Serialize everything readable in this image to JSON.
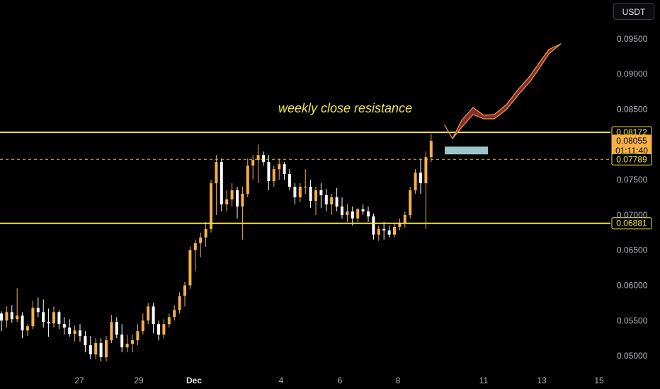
{
  "toolbar": {
    "currency": "USDT"
  },
  "chart_data": {
    "type": "candlestick",
    "ylim": [
      0.0488,
      0.097
    ],
    "yticks": [
      "0.09500",
      "0.09000",
      "0.08500",
      "0.07500",
      "0.07000",
      "0.06500",
      "0.06000",
      "0.05500",
      "0.05000"
    ],
    "xticks": [
      "27",
      "29",
      "Dec",
      "4",
      "6",
      "8",
      "11",
      "13",
      "15"
    ],
    "colors": {
      "up": "#f5b048",
      "down": "#ffffff",
      "level": "#f0e44a",
      "zone": "#9cc5cc",
      "projection": "#8b2a2a",
      "projection_edge": "#e8a24a",
      "dashed": "#e0c23a"
    },
    "levels": [
      {
        "price": 0.08172,
        "label": "0.08172",
        "annotation": "weekly close resistance"
      },
      {
        "price": 0.06881,
        "label": "0.06881"
      }
    ],
    "current_price": {
      "price": 0.08055,
      "label": "0.08055",
      "countdown": "01:11:40"
    },
    "dashed_level": {
      "price": 0.07789,
      "label": "0.07789"
    },
    "candles": [
      [
        0.056,
        0.0563,
        0.0535,
        0.055
      ],
      [
        0.055,
        0.057,
        0.054,
        0.0562
      ],
      [
        0.0562,
        0.0572,
        0.0547,
        0.0552
      ],
      [
        0.0552,
        0.0596,
        0.0548,
        0.0557
      ],
      [
        0.0557,
        0.0562,
        0.0525,
        0.0536
      ],
      [
        0.0536,
        0.0545,
        0.0528,
        0.0542
      ],
      [
        0.0542,
        0.0578,
        0.0538,
        0.0568
      ],
      [
        0.0568,
        0.0583,
        0.0555,
        0.0562
      ],
      [
        0.0562,
        0.058,
        0.054,
        0.0548
      ],
      [
        0.0548,
        0.0567,
        0.0527,
        0.0546
      ],
      [
        0.0546,
        0.057,
        0.054,
        0.0562
      ],
      [
        0.0562,
        0.0565,
        0.0538,
        0.0545
      ],
      [
        0.0545,
        0.0555,
        0.053,
        0.054
      ],
      [
        0.054,
        0.0552,
        0.0527,
        0.0531
      ],
      [
        0.0531,
        0.0543,
        0.052,
        0.0536
      ],
      [
        0.0536,
        0.0545,
        0.052,
        0.0528
      ],
      [
        0.0528,
        0.0535,
        0.0505,
        0.0515
      ],
      [
        0.0515,
        0.0528,
        0.0495,
        0.0502
      ],
      [
        0.0502,
        0.0525,
        0.0495,
        0.0518
      ],
      [
        0.0518,
        0.0525,
        0.0492,
        0.0498
      ],
      [
        0.0498,
        0.0528,
        0.0492,
        0.0522
      ],
      [
        0.0522,
        0.0558,
        0.0518,
        0.0548
      ],
      [
        0.0548,
        0.0555,
        0.0525,
        0.053
      ],
      [
        0.053,
        0.0545,
        0.0505,
        0.0512
      ],
      [
        0.0512,
        0.053,
        0.0505,
        0.0517
      ],
      [
        0.0517,
        0.053,
        0.0505,
        0.0522
      ],
      [
        0.0522,
        0.0545,
        0.0515,
        0.0535
      ],
      [
        0.0535,
        0.056,
        0.053,
        0.055
      ],
      [
        0.055,
        0.0575,
        0.0545,
        0.057
      ],
      [
        0.057,
        0.0575,
        0.0532,
        0.0545
      ],
      [
        0.0545,
        0.055,
        0.0522,
        0.053
      ],
      [
        0.053,
        0.0552,
        0.0525,
        0.0545
      ],
      [
        0.0545,
        0.056,
        0.054,
        0.0555
      ],
      [
        0.0555,
        0.0572,
        0.055,
        0.0565
      ],
      [
        0.0565,
        0.059,
        0.056,
        0.0585
      ],
      [
        0.0585,
        0.0605,
        0.057,
        0.06
      ],
      [
        0.06,
        0.0655,
        0.0595,
        0.065
      ],
      [
        0.065,
        0.0665,
        0.062,
        0.066
      ],
      [
        0.066,
        0.0675,
        0.064,
        0.0668
      ],
      [
        0.0668,
        0.069,
        0.0655,
        0.068
      ],
      [
        0.068,
        0.075,
        0.0675,
        0.0745
      ],
      [
        0.0745,
        0.0785,
        0.07,
        0.0775
      ],
      [
        0.0775,
        0.078,
        0.0705,
        0.0715
      ],
      [
        0.0715,
        0.0735,
        0.0705,
        0.0722
      ],
      [
        0.0722,
        0.0745,
        0.0712,
        0.0735
      ],
      [
        0.0735,
        0.074,
        0.0695,
        0.0712
      ],
      [
        0.0712,
        0.074,
        0.0665,
        0.073
      ],
      [
        0.073,
        0.078,
        0.0725,
        0.077
      ],
      [
        0.077,
        0.0785,
        0.075,
        0.0778
      ],
      [
        0.0778,
        0.08,
        0.0745,
        0.0785
      ],
      [
        0.0785,
        0.079,
        0.077,
        0.0775
      ],
      [
        0.0775,
        0.0785,
        0.0735,
        0.0748
      ],
      [
        0.0748,
        0.077,
        0.074,
        0.0765
      ],
      [
        0.0765,
        0.078,
        0.075,
        0.0772
      ],
      [
        0.0772,
        0.0775,
        0.075,
        0.0758
      ],
      [
        0.0758,
        0.0765,
        0.0735,
        0.074
      ],
      [
        0.074,
        0.0745,
        0.0715,
        0.0725
      ],
      [
        0.0725,
        0.0745,
        0.0718,
        0.074
      ],
      [
        0.074,
        0.0765,
        0.073,
        0.074
      ],
      [
        0.074,
        0.075,
        0.071,
        0.072
      ],
      [
        0.072,
        0.074,
        0.07,
        0.0735
      ],
      [
        0.0735,
        0.0745,
        0.071,
        0.0728
      ],
      [
        0.0728,
        0.0737,
        0.0705,
        0.0715
      ],
      [
        0.0715,
        0.073,
        0.07,
        0.0725
      ],
      [
        0.0725,
        0.0738,
        0.0705,
        0.0712
      ],
      [
        0.0712,
        0.0725,
        0.0695,
        0.07
      ],
      [
        0.07,
        0.0715,
        0.069,
        0.0705
      ],
      [
        0.0705,
        0.0712,
        0.0685,
        0.0695
      ],
      [
        0.0695,
        0.071,
        0.069,
        0.0708
      ],
      [
        0.0708,
        0.0715,
        0.07,
        0.0705
      ],
      [
        0.0705,
        0.0712,
        0.069,
        0.0698
      ],
      [
        0.0698,
        0.0702,
        0.0665,
        0.0672
      ],
      [
        0.0672,
        0.0685,
        0.0663,
        0.068
      ],
      [
        0.068,
        0.069,
        0.0665,
        0.0678
      ],
      [
        0.0678,
        0.0685,
        0.0668,
        0.0672
      ],
      [
        0.0672,
        0.0688,
        0.0668,
        0.0683
      ],
      [
        0.0683,
        0.0695,
        0.0678,
        0.0688
      ],
      [
        0.0688,
        0.0705,
        0.0682,
        0.07
      ],
      [
        0.07,
        0.074,
        0.0695,
        0.0735
      ],
      [
        0.0735,
        0.0765,
        0.073,
        0.076
      ],
      [
        0.076,
        0.078,
        0.073,
        0.0745
      ],
      [
        0.0745,
        0.079,
        0.068,
        0.0782
      ],
      [
        0.0782,
        0.0815,
        0.0775,
        0.0805
      ]
    ],
    "projection_path": [
      [
        639,
        196
      ],
      [
        652,
        170
      ],
      [
        668,
        152
      ],
      [
        683,
        163
      ],
      [
        698,
        162
      ],
      [
        715,
        148
      ],
      [
        732,
        126
      ],
      [
        748,
        108
      ],
      [
        762,
        88
      ],
      [
        775,
        70
      ],
      [
        792,
        62
      ]
    ],
    "projection_lower": [
      [
        639,
        196
      ],
      [
        652,
        180
      ],
      [
        668,
        162
      ],
      [
        683,
        168
      ],
      [
        698,
        168
      ],
      [
        715,
        155
      ],
      [
        732,
        134
      ],
      [
        748,
        116
      ],
      [
        762,
        96
      ],
      [
        775,
        76
      ],
      [
        792,
        62
      ]
    ],
    "projection_start": [
      628,
      177
    ],
    "zone_price": [
      0.0797,
      0.0786
    ],
    "zone_x": [
      628,
      689
    ]
  }
}
